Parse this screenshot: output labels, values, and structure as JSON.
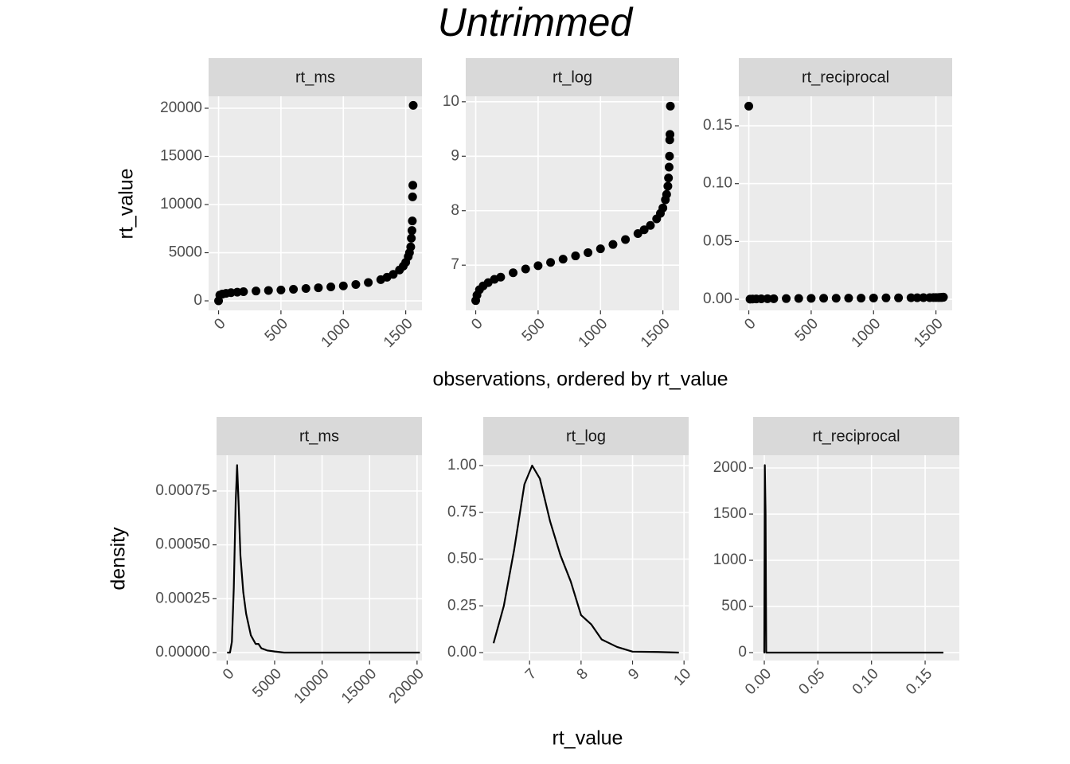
{
  "title": "Untrimmed",
  "labels": {
    "top_x": "observations, ordered by rt_value",
    "top_y": "rt_value",
    "bottom_x": "rt_value",
    "bottom_y": "density"
  },
  "chart_data": [
    {
      "type": "scatter",
      "title": "rt_ms",
      "color": "#000000",
      "x": [
        0,
        10,
        30,
        60,
        100,
        150,
        200,
        300,
        400,
        500,
        600,
        700,
        800,
        900,
        1000,
        1100,
        1200,
        1300,
        1350,
        1400,
        1450,
        1480,
        1500,
        1520,
        1530,
        1540,
        1545,
        1550,
        1553,
        1555,
        1557,
        1560
      ],
      "values": [
        0,
        600,
        700,
        780,
        850,
        900,
        950,
        1020,
        1080,
        1130,
        1200,
        1280,
        1360,
        1450,
        1550,
        1700,
        1900,
        2200,
        2450,
        2750,
        3200,
        3600,
        4000,
        4600,
        5000,
        5600,
        6500,
        7300,
        8300,
        10800,
        12000,
        20300
      ],
      "xlim": [
        -80,
        1630
      ],
      "ylim": [
        -990,
        21240
      ],
      "xticks": [
        0,
        500,
        1000,
        1500
      ],
      "yticks": [
        0,
        5000,
        10000,
        15000,
        20000
      ],
      "grid": true
    },
    {
      "type": "scatter",
      "title": "rt_log",
      "color": "#000000",
      "x": [
        0,
        10,
        30,
        60,
        100,
        150,
        200,
        300,
        400,
        500,
        600,
        700,
        800,
        900,
        1000,
        1100,
        1200,
        1300,
        1350,
        1400,
        1450,
        1480,
        1500,
        1520,
        1530,
        1540,
        1545,
        1550,
        1553,
        1555,
        1557,
        1560
      ],
      "values": [
        6.35,
        6.45,
        6.55,
        6.62,
        6.68,
        6.74,
        6.78,
        6.86,
        6.93,
        6.99,
        7.05,
        7.11,
        7.17,
        7.23,
        7.3,
        7.38,
        7.47,
        7.58,
        7.65,
        7.73,
        7.85,
        7.95,
        8.05,
        8.2,
        8.3,
        8.45,
        8.6,
        8.8,
        9.0,
        9.3,
        9.4,
        9.92
      ],
      "xlim": [
        -80,
        1630
      ],
      "ylim": [
        6.17,
        10.1
      ],
      "xticks": [
        0,
        500,
        1000,
        1500
      ],
      "yticks": [
        7,
        8,
        9,
        10
      ],
      "grid": true
    },
    {
      "type": "scatter",
      "title": "rt_reciprocal",
      "color": "#000000",
      "x": [
        0,
        10,
        30,
        60,
        100,
        150,
        200,
        300,
        400,
        500,
        600,
        700,
        800,
        900,
        1000,
        1100,
        1200,
        1300,
        1350,
        1400,
        1450,
        1480,
        1500,
        1520,
        1530,
        1540,
        1545,
        1550,
        1553,
        1555,
        1557,
        1560
      ],
      "values": [
        0.167,
        0.0001,
        0.0002,
        0.0003,
        0.0004,
        0.0005,
        0.0005,
        0.0006,
        0.0007,
        0.0008,
        0.0009,
        0.0009,
        0.001,
        0.001,
        0.0011,
        0.0012,
        0.0012,
        0.0013,
        0.0013,
        0.0014,
        0.0014,
        0.0015,
        0.0015,
        0.0015,
        0.0016,
        0.0016,
        0.0016,
        0.0017,
        0.0017,
        0.0017,
        0.0018,
        0.0018
      ],
      "xlim": [
        -80,
        1630
      ],
      "ylim": [
        -0.0096,
        0.1755
      ],
      "xticks": [
        0,
        500,
        1000,
        1500
      ],
      "yticks": [
        {
          "value": 0,
          "label": "0.00"
        },
        {
          "value": 0.05,
          "label": "0.05"
        },
        {
          "value": 0.1,
          "label": "0.10"
        },
        {
          "value": 0.15,
          "label": "0.15"
        }
      ],
      "grid": true
    },
    {
      "type": "line",
      "title": "rt_ms",
      "color": "#000000",
      "x": [
        0,
        300,
        500,
        700,
        900,
        1050,
        1200,
        1400,
        1700,
        2000,
        2500,
        3000,
        3300,
        3600,
        4200,
        5000,
        6000,
        20300
      ],
      "values": [
        0,
        0,
        5e-05,
        0.0003,
        0.0007,
        0.00087,
        0.0007,
        0.00045,
        0.00028,
        0.00018,
        8e-05,
        4e-05,
        4e-05,
        2e-05,
        1e-05,
        5e-06,
        0,
        0
      ],
      "xlim": [
        -1116,
        20515
      ],
      "ylim": [
        -3.7e-05,
        0.000916
      ],
      "xticks": [
        0,
        5000,
        10000,
        15000,
        20000
      ],
      "yticks": [
        {
          "value": 0,
          "label": "0.00000"
        },
        {
          "value": 0.00025,
          "label": "0.00025"
        },
        {
          "value": 0.0005,
          "label": "0.00050"
        },
        {
          "value": 0.00075,
          "label": "0.00075"
        }
      ],
      "grid": true
    },
    {
      "type": "line",
      "title": "rt_log",
      "color": "#000000",
      "x": [
        6.3,
        6.5,
        6.7,
        6.9,
        7.05,
        7.2,
        7.4,
        7.6,
        7.8,
        8.0,
        8.2,
        8.4,
        8.7,
        9.0,
        9.5,
        9.9
      ],
      "values": [
        0.05,
        0.25,
        0.55,
        0.9,
        1.0,
        0.93,
        0.7,
        0.52,
        0.38,
        0.2,
        0.15,
        0.07,
        0.03,
        0.005,
        0.003,
        0
      ],
      "xlim": [
        6.1,
        10.09
      ],
      "ylim": [
        -0.0426,
        1.0553
      ],
      "xticks": [
        7,
        8,
        9,
        10
      ],
      "yticks": [
        {
          "value": 0,
          "label": "0.00"
        },
        {
          "value": 0.25,
          "label": "0.25"
        },
        {
          "value": 0.5,
          "label": "0.50"
        },
        {
          "value": 0.75,
          "label": "0.75"
        },
        {
          "value": 1,
          "label": "1.00"
        }
      ],
      "grid": true
    },
    {
      "type": "line",
      "title": "rt_reciprocal",
      "color": "#000000",
      "x": [
        -0.0005,
        0,
        0.0005,
        0.0012,
        0.0018,
        0.002,
        0.167
      ],
      "values": [
        0,
        0,
        2030,
        1500,
        0,
        0,
        0
      ],
      "xlim": [
        -0.0104,
        0.1819
      ],
      "ylim": [
        -86,
        2138
      ],
      "xticks": [
        {
          "value": 0,
          "label": "0.00"
        },
        {
          "value": 0.05,
          "label": "0.05"
        },
        {
          "value": 0.1,
          "label": "0.10"
        },
        {
          "value": 0.15,
          "label": "0.15"
        }
      ],
      "yticks": [
        0,
        500,
        1000,
        1500,
        2000
      ],
      "grid": true
    }
  ]
}
